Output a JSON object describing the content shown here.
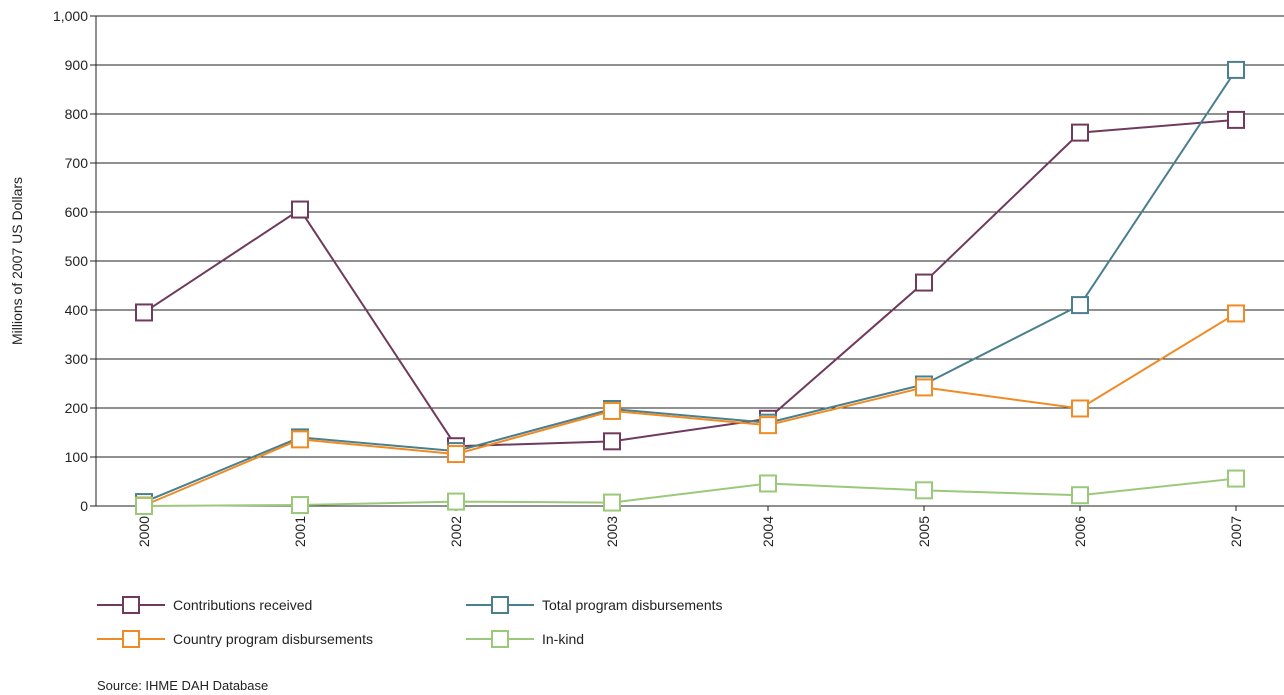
{
  "chart_data": {
    "type": "line",
    "title": "",
    "xlabel": "",
    "ylabel": "Millions of 2007 US Dollars",
    "ylim": [
      0,
      1000
    ],
    "yticks": [
      0,
      100,
      200,
      300,
      400,
      500,
      600,
      700,
      800,
      900,
      1000
    ],
    "ytick_labels": [
      "0",
      "100",
      "200",
      "300",
      "400",
      "500",
      "600",
      "700",
      "800",
      "900",
      "1,000"
    ],
    "categories": [
      "2000",
      "2001",
      "2002",
      "2003",
      "2004",
      "2005",
      "2006",
      "2007"
    ],
    "grid": "horizontal",
    "legend_position": "bottom",
    "series": [
      {
        "name": "Contributions received",
        "color": "#6e3b5e",
        "marker": "square-open",
        "values": [
          395,
          605,
          122,
          132,
          178,
          456,
          762,
          788
        ]
      },
      {
        "name": "Total program disbursements",
        "color": "#4a7f8c",
        "marker": "square-open",
        "values": [
          8,
          140,
          112,
          198,
          170,
          248,
          410,
          890
        ]
      },
      {
        "name": "Country program disbursements",
        "color": "#f08a24",
        "marker": "square-open",
        "values": [
          1,
          136,
          106,
          194,
          165,
          242,
          199,
          393
        ]
      },
      {
        "name": "In-kind",
        "color": "#9bc97a",
        "marker": "square-open",
        "values": [
          0,
          2,
          9,
          7,
          46,
          32,
          22,
          56
        ]
      }
    ],
    "source": "Source: IHME DAH Database"
  }
}
